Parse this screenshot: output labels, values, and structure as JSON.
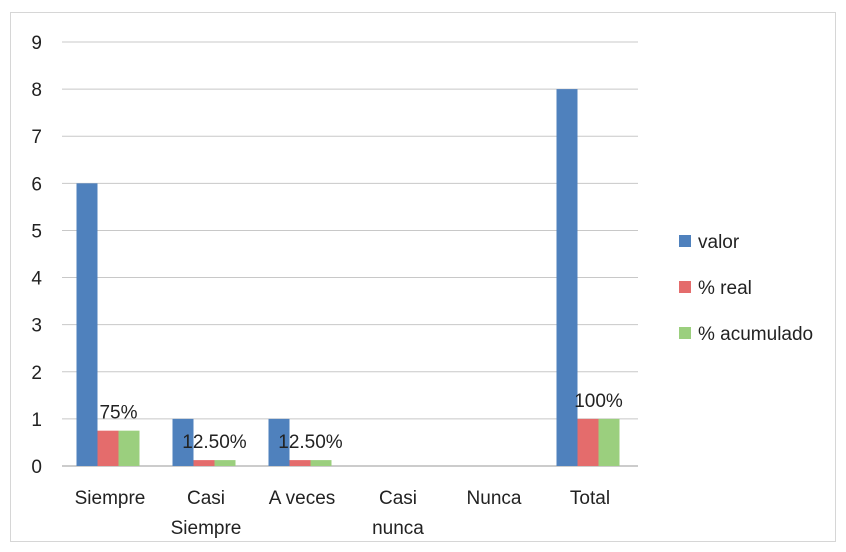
{
  "chart_data": {
    "type": "bar",
    "title": "",
    "xlabel": "",
    "ylabel": "",
    "ylim": [
      0,
      9
    ],
    "yticks": [
      0,
      1,
      2,
      3,
      4,
      5,
      6,
      7,
      8,
      9
    ],
    "grid": true,
    "legend_position": "right",
    "categories": [
      "Siempre",
      "Casi Siempre",
      "A veces",
      "Casi nunca",
      "Nunca",
      "Total"
    ],
    "category_lines": [
      [
        "Siempre"
      ],
      [
        "Casi",
        "Siempre"
      ],
      [
        "A veces"
      ],
      [
        "Casi",
        "nunca"
      ],
      [
        "Nunca"
      ],
      [
        "Total"
      ]
    ],
    "series": [
      {
        "name": "valor",
        "color": "#4f81bd",
        "values": [
          6,
          1,
          1,
          0,
          0,
          8
        ]
      },
      {
        "name": "% real",
        "color": "#e46c6c",
        "values": [
          0.75,
          0.125,
          0.125,
          0,
          0,
          1
        ]
      },
      {
        "name": "% acumulado",
        "color": "#9bcf7e",
        "values": [
          0.75,
          0.125,
          0.125,
          0,
          0,
          1
        ]
      }
    ],
    "data_labels": [
      "75%",
      "12.50%",
      "12.50%",
      "",
      "",
      "100%"
    ]
  }
}
